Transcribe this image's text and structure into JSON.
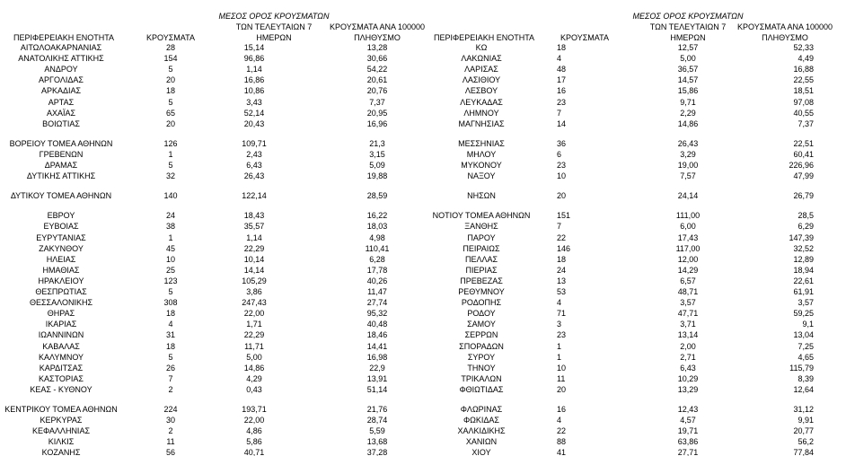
{
  "left_table": {
    "header": {
      "region": "ΠΕΡΙΦΕΡΕΙΑΚΗ ΕΝΟΤΗΤΑ",
      "cases": "ΚΡΟΥΣΜΑΤΑ",
      "avg": [
        "ΜΕΣΟΣ ΟΡΟΣ ΚΡΟΥΣΜΑΤΩΝ",
        "ΤΩΝ ΤΕΛΕΥΤΑΙΩΝ 7",
        "ΗΜΕΡΩΝ"
      ],
      "per": [
        "ΚΡΟΥΣΜΑΤΑ ΑΝΑ 100000",
        "ΠΛΗΘΥΣΜΟ"
      ]
    },
    "groups": [
      [
        [
          "ΑΙΤΩΛΟΑΚΑΡΝΑΝΙΑΣ",
          "28",
          "15,14",
          "13,28"
        ],
        [
          "ΑΝΑΤΟΛΙΚΗΣ ΑΤΤΙΚΗΣ",
          "154",
          "96,86",
          "30,66"
        ],
        [
          "ΑΝΔΡΟΥ",
          "5",
          "1,14",
          "54,22"
        ],
        [
          "ΑΡΓΟΛΙΔΑΣ",
          "20",
          "16,86",
          "20,61"
        ],
        [
          "ΑΡΚΑΔΙΑΣ",
          "18",
          "10,86",
          "20,76"
        ],
        [
          "ΑΡΤΑΣ",
          "5",
          "3,43",
          "7,37"
        ],
        [
          "ΑΧΑΪΑΣ",
          "65",
          "52,14",
          "20,95"
        ],
        [
          "ΒΟΙΩΤΙΑΣ",
          "20",
          "20,43",
          "16,96"
        ]
      ],
      [
        [
          "ΒΟΡΕΙΟΥ ΤΟΜΕΑ ΑΘΗΝΩΝ",
          "126",
          "109,71",
          "21,3"
        ],
        [
          "ΓΡΕΒΕΝΩΝ",
          "1",
          "2,43",
          "3,15"
        ],
        [
          "ΔΡΑΜΑΣ",
          "5",
          "6,43",
          "5,09"
        ],
        [
          "ΔΥΤΙΚΗΣ ΑΤΤΙΚΗΣ",
          "32",
          "26,43",
          "19,88"
        ]
      ],
      [
        [
          "ΔΥΤΙΚΟΥ ΤΟΜΕΑ ΑΘΗΝΩΝ",
          "140",
          "122,14",
          "28,59"
        ]
      ],
      [
        [
          "ΕΒΡΟΥ",
          "24",
          "18,43",
          "16,22"
        ],
        [
          "ΕΥΒΟΙΑΣ",
          "38",
          "35,57",
          "18,03"
        ],
        [
          "ΕΥΡΥΤΑΝΙΑΣ",
          "1",
          "1,14",
          "4,98"
        ],
        [
          "ΖΑΚΥΝΘΟΥ",
          "45",
          "22,29",
          "110,41"
        ],
        [
          "ΗΛΕΙΑΣ",
          "10",
          "10,14",
          "6,28"
        ],
        [
          "ΗΜΑΘΙΑΣ",
          "25",
          "14,14",
          "17,78"
        ],
        [
          "ΗΡΑΚΛΕΙΟΥ",
          "123",
          "105,29",
          "40,26"
        ],
        [
          "ΘΕΣΠΡΩΤΙΑΣ",
          "5",
          "3,86",
          "11,47"
        ],
        [
          "ΘΕΣΣΑΛΟΝΙΚΗΣ",
          "308",
          "247,43",
          "27,74"
        ],
        [
          "ΘΗΡΑΣ",
          "18",
          "22,00",
          "95,32"
        ],
        [
          "ΙΚΑΡΙΑΣ",
          "4",
          "1,71",
          "40,48"
        ],
        [
          "ΙΩΑΝΝΙΝΩΝ",
          "31",
          "22,29",
          "18,46"
        ],
        [
          "ΚΑΒΑΛΑΣ",
          "18",
          "11,71",
          "14,41"
        ],
        [
          "ΚΑΛΥΜΝΟΥ",
          "5",
          "5,00",
          "16,98"
        ],
        [
          "ΚΑΡΔΙΤΣΑΣ",
          "26",
          "14,86",
          "22,9"
        ],
        [
          "ΚΑΣΤΟΡΙΑΣ",
          "7",
          "4,29",
          "13,91"
        ],
        [
          "ΚΕΑΣ - ΚΥΘΝΟΥ",
          "2",
          "0,43",
          "51,14"
        ]
      ],
      [
        [
          "ΚΕΝΤΡΙΚΟΥ ΤΟΜΕΑ ΑΘΗΝΩΝ",
          "224",
          "193,71",
          "21,76"
        ],
        [
          "ΚΕΡΚΥΡΑΣ",
          "30",
          "22,00",
          "28,74"
        ],
        [
          "ΚΕΦΑΛΛΗΝΙΑΣ",
          "2",
          "4,86",
          "5,59"
        ],
        [
          "ΚΙΛΚΙΣ",
          "11",
          "5,86",
          "13,68"
        ],
        [
          "ΚΟΖΑΝΗΣ",
          "56",
          "40,71",
          "37,28"
        ]
      ]
    ]
  },
  "right_table": {
    "header": {
      "region": "ΠΕΡΙΦΕΡΕΙΑΚΗ ΕΝΟΤΗΤΑ",
      "cases": "ΚΡΟΥΣΜΑΤΑ",
      "avg": [
        "ΜΕΣΟΣ ΟΡΟΣ ΚΡΟΥΣΜΑΤΩΝ",
        "ΤΩΝ ΤΕΛΕΥΤΑΙΩΝ 7",
        "ΗΜΕΡΩΝ"
      ],
      "per": [
        "ΚΡΟΥΣΜΑΤΑ ΑΝΑ 100000",
        "ΠΛΗΘΥΣΜΟ"
      ]
    },
    "groups": [
      [
        [
          "ΚΩ",
          "18",
          "12,57",
          "52,33"
        ],
        [
          "ΛΑΚΩΝΙΑΣ",
          "4",
          "5,00",
          "4,49"
        ],
        [
          "ΛΑΡΙΣΑΣ",
          "48",
          "36,57",
          "16,88"
        ],
        [
          "ΛΑΣΙΘΙΟΥ",
          "17",
          "14,57",
          "22,55"
        ],
        [
          "ΛΕΣΒΟΥ",
          "16",
          "15,86",
          "18,51"
        ],
        [
          "ΛΕΥΚΑΔΑΣ",
          "23",
          "9,71",
          "97,08"
        ],
        [
          "ΛΗΜΝΟΥ",
          "7",
          "2,29",
          "40,55"
        ],
        [
          "ΜΑΓΝΗΣΙΑΣ",
          "14",
          "14,86",
          "7,37"
        ]
      ],
      [
        [
          "ΜΕΣΣΗΝΙΑΣ",
          "36",
          "26,43",
          "22,51"
        ],
        [
          "ΜΗΛΟΥ",
          "6",
          "3,29",
          "60,41"
        ],
        [
          "ΜΥΚΟΝΟΥ",
          "23",
          "19,00",
          "226,96"
        ],
        [
          "ΝΑΞΟΥ",
          "10",
          "7,57",
          "47,99"
        ]
      ],
      [
        [
          "ΝΗΣΩΝ",
          "20",
          "24,14",
          "26,79"
        ]
      ],
      [
        [
          "ΝΟΤΙΟΥ ΤΟΜΕΑ ΑΘΗΝΩΝ",
          "151",
          "111,00",
          "28,5"
        ],
        [
          "ΞΑΝΘΗΣ",
          "7",
          "6,00",
          "6,29"
        ],
        [
          "ΠΑΡΟΥ",
          "22",
          "17,43",
          "147,39"
        ],
        [
          "ΠΕΙΡΑΙΩΣ",
          "146",
          "117,00",
          "32,52"
        ],
        [
          "ΠΕΛΛΑΣ",
          "18",
          "12,00",
          "12,89"
        ],
        [
          "ΠΙΕΡΙΑΣ",
          "24",
          "14,29",
          "18,94"
        ],
        [
          "ΠΡΕΒΕΖΑΣ",
          "13",
          "6,57",
          "22,61"
        ],
        [
          "ΡΕΘΥΜΝΟΥ",
          "53",
          "48,71",
          "61,91"
        ],
        [
          "ΡΟΔΟΠΗΣ",
          "4",
          "3,57",
          "3,57"
        ],
        [
          "ΡΟΔΟΥ",
          "71",
          "47,71",
          "59,25"
        ],
        [
          "ΣΑΜΟΥ",
          "3",
          "3,71",
          "9,1"
        ],
        [
          "ΣΕΡΡΩΝ",
          "23",
          "13,14",
          "13,04"
        ],
        [
          "ΣΠΟΡΑΔΩΝ",
          "1",
          "2,00",
          "7,25"
        ],
        [
          "ΣΥΡΟΥ",
          "1",
          "2,71",
          "4,65"
        ],
        [
          "ΤΗΝΟΥ",
          "10",
          "6,43",
          "115,79"
        ],
        [
          "ΤΡΙΚΑΛΩΝ",
          "11",
          "10,29",
          "8,39"
        ],
        [
          "ΦΘΙΩΤΙΔΑΣ",
          "20",
          "13,29",
          "12,64"
        ]
      ],
      [
        [
          "ΦΛΩΡΙΝΑΣ",
          "16",
          "12,43",
          "31,12"
        ],
        [
          "ΦΩΚΙΔΑΣ",
          "4",
          "4,57",
          "9,91"
        ],
        [
          "ΧΑΛΚΙΔΙΚΗΣ",
          "22",
          "19,71",
          "20,77"
        ],
        [
          "ΧΑΝΙΩΝ",
          "88",
          "63,86",
          "56,2"
        ],
        [
          "ΧΙΟΥ",
          "41",
          "27,71",
          "77,84"
        ]
      ]
    ]
  }
}
